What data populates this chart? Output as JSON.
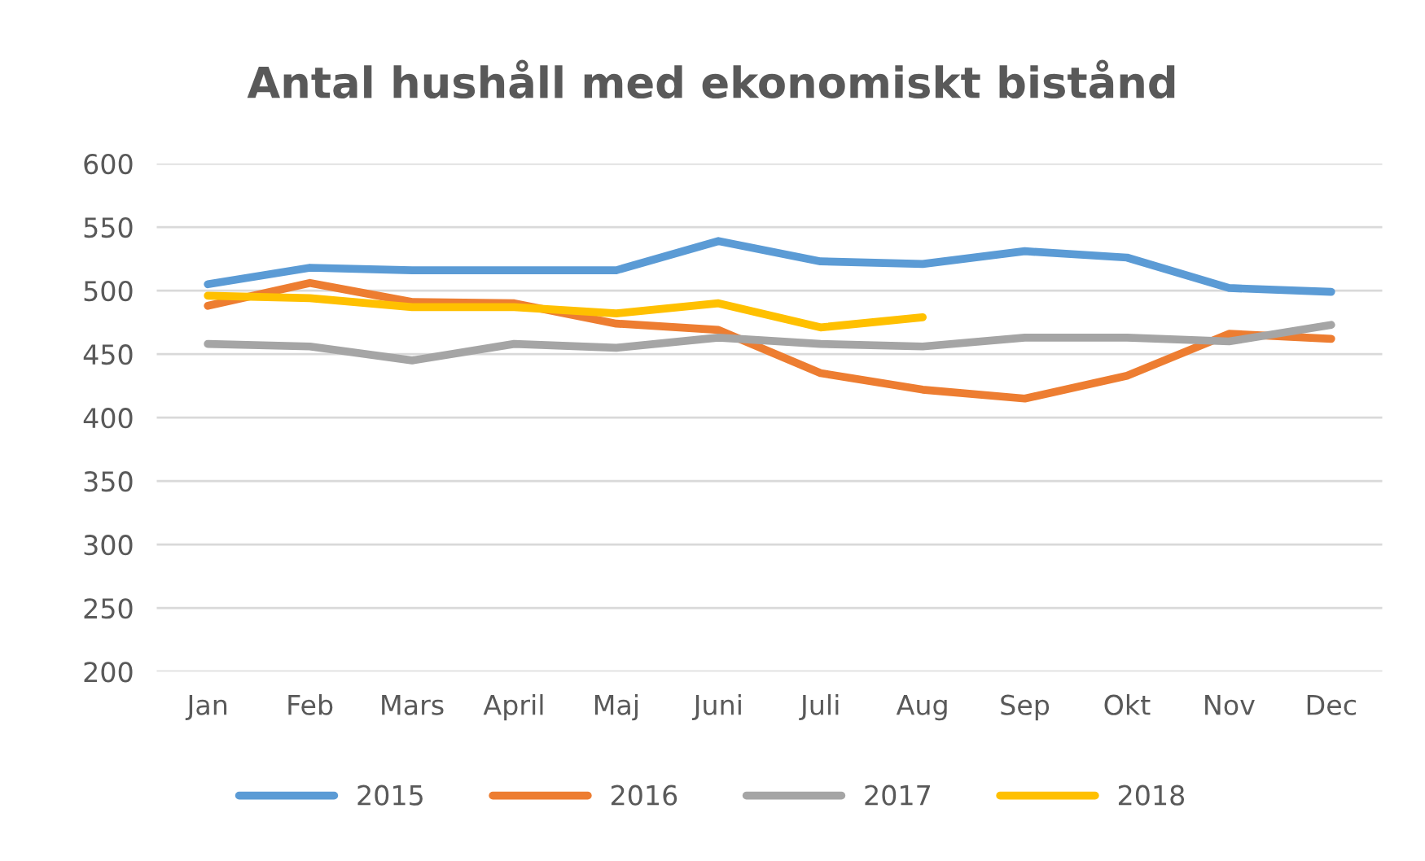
{
  "chart_data": {
    "type": "line",
    "title": "Antal hushåll med ekonomiskt bistånd",
    "categories": [
      "Jan",
      "Feb",
      "Mars",
      "April",
      "Maj",
      "Juni",
      "Juli",
      "Aug",
      "Sep",
      "Okt",
      "Nov",
      "Dec"
    ],
    "series": [
      {
        "name": "2015",
        "color": "#5b9bd5",
        "values": [
          505,
          518,
          516,
          516,
          516,
          539,
          523,
          521,
          531,
          526,
          502,
          499
        ]
      },
      {
        "name": "2016",
        "color": "#ed7d31",
        "values": [
          488,
          506,
          491,
          490,
          474,
          469,
          435,
          422,
          415,
          433,
          466,
          462
        ]
      },
      {
        "name": "2017",
        "color": "#a5a5a5",
        "values": [
          458,
          456,
          445,
          458,
          455,
          463,
          458,
          456,
          463,
          463,
          460,
          473
        ]
      },
      {
        "name": "2018",
        "color": "#ffc000",
        "values": [
          496,
          494,
          487,
          487,
          482,
          490,
          471,
          479,
          null,
          null,
          null,
          null
        ]
      }
    ],
    "ylim": [
      200,
      600
    ],
    "yticks": [
      200,
      250,
      300,
      350,
      400,
      450,
      500,
      550,
      600
    ],
    "grid": "y",
    "legend": "bottom",
    "marker": "none",
    "line_style": "solid"
  }
}
